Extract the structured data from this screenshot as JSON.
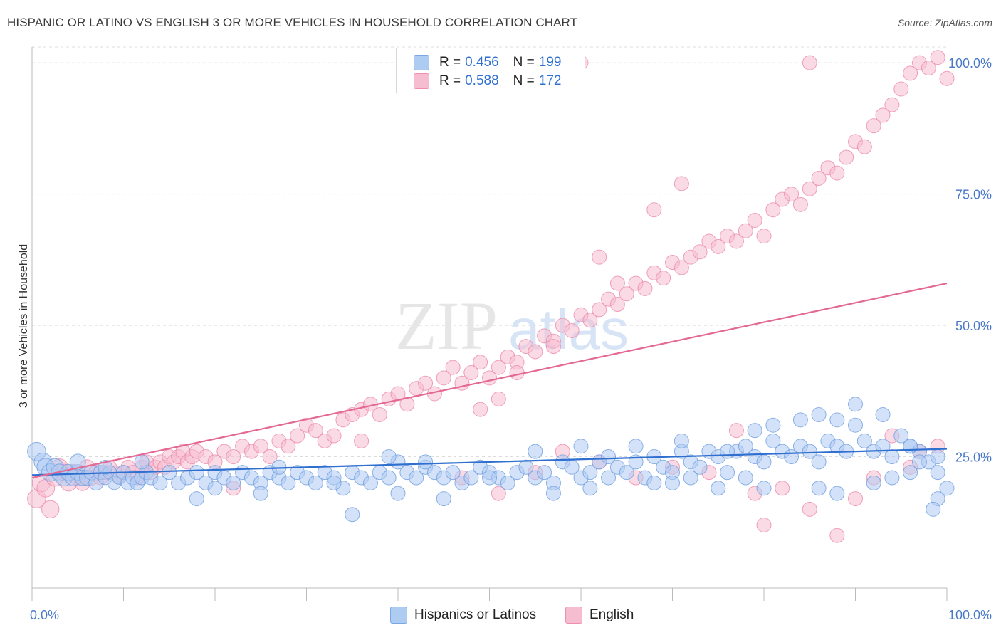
{
  "title": "HISPANIC OR LATINO VS ENGLISH 3 OR MORE VEHICLES IN HOUSEHOLD CORRELATION CHART",
  "source": "Source: ZipAtlas.com",
  "watermark": {
    "zip": "ZIP",
    "atlas": "atlas"
  },
  "stats": [
    {
      "r_label": "R =",
      "r_value": "0.456",
      "n_label": "N =",
      "n_value": "199",
      "color": "#aecbf2",
      "border": "#7aa6e6"
    },
    {
      "r_label": "R =",
      "r_value": "0.588",
      "n_label": "N =",
      "n_value": "172",
      "color": "#f6bcd0",
      "border": "#ee8fb0"
    }
  ],
  "legend": [
    {
      "label": "Hispanics or Latinos",
      "color": "#aecbf2",
      "border": "#7aa6e6"
    },
    {
      "label": "English",
      "color": "#f6bcd0",
      "border": "#ee8fb0"
    }
  ],
  "chart_data": {
    "type": "scatter",
    "title": "HISPANIC OR LATINO VS ENGLISH 3 OR MORE VEHICLES IN HOUSEHOLD CORRELATION CHART",
    "xlabel": "",
    "ylabel": "3 or more Vehicles in Household",
    "xlim": [
      0,
      100
    ],
    "ylim": [
      0,
      103
    ],
    "x_tick_labels": [
      "0.0%",
      "100.0%"
    ],
    "y_ticks": [
      25,
      50,
      75,
      100
    ],
    "y_tick_labels": [
      "25.0%",
      "50.0%",
      "75.0%",
      "100.0%"
    ],
    "grid": "dashed horizontal",
    "colors": {
      "blue_fill": "#aecbf2",
      "blue_stroke": "#6f9fe0",
      "blue_line": "#2f6fd0",
      "pink_fill": "#f6bcd0",
      "pink_stroke": "#ec8aab",
      "pink_line": "#e46894",
      "axis_text": "#4a78c8"
    },
    "series": [
      {
        "name": "Hispanics or Latinos",
        "trend": {
          "x": [
            0,
            100
          ],
          "y": [
            21.5,
            26.5
          ]
        },
        "points": [
          [
            0.5,
            26
          ],
          [
            1.2,
            24
          ],
          [
            1.5,
            23
          ],
          [
            2,
            22
          ],
          [
            2.5,
            23
          ],
          [
            3,
            22
          ],
          [
            3.5,
            21
          ],
          [
            4,
            22
          ],
          [
            4.5,
            21
          ],
          [
            5,
            22
          ],
          [
            5.5,
            21
          ],
          [
            6,
            21
          ],
          [
            6.5,
            22
          ],
          [
            7,
            20
          ],
          [
            7.5,
            22
          ],
          [
            8,
            21
          ],
          [
            8.5,
            22
          ],
          [
            9,
            20
          ],
          [
            9.5,
            21
          ],
          [
            10,
            22
          ],
          [
            10.5,
            20
          ],
          [
            11,
            21
          ],
          [
            11.5,
            20
          ],
          [
            12,
            21
          ],
          [
            12.5,
            22
          ],
          [
            13,
            21
          ],
          [
            14,
            20
          ],
          [
            15,
            22
          ],
          [
            16,
            20
          ],
          [
            17,
            21
          ],
          [
            18,
            22
          ],
          [
            19,
            20
          ],
          [
            20,
            22
          ],
          [
            21,
            21
          ],
          [
            22,
            20
          ],
          [
            23,
            22
          ],
          [
            24,
            21
          ],
          [
            25,
            20
          ],
          [
            26,
            22
          ],
          [
            27,
            21
          ],
          [
            28,
            20
          ],
          [
            29,
            22
          ],
          [
            30,
            21
          ],
          [
            31,
            20
          ],
          [
            32,
            22
          ],
          [
            33,
            21
          ],
          [
            34,
            19
          ],
          [
            35,
            22
          ],
          [
            36,
            21
          ],
          [
            37,
            20
          ],
          [
            38,
            22
          ],
          [
            39,
            21
          ],
          [
            40,
            24
          ],
          [
            41,
            22
          ],
          [
            42,
            21
          ],
          [
            43,
            23
          ],
          [
            44,
            22
          ],
          [
            45,
            21
          ],
          [
            46,
            22
          ],
          [
            47,
            20
          ],
          [
            48,
            21
          ],
          [
            49,
            23
          ],
          [
            50,
            22
          ],
          [
            51,
            21
          ],
          [
            52,
            20
          ],
          [
            53,
            22
          ],
          [
            54,
            23
          ],
          [
            55,
            21
          ],
          [
            56,
            22
          ],
          [
            57,
            20
          ],
          [
            58,
            24
          ],
          [
            59,
            23
          ],
          [
            60,
            21
          ],
          [
            61,
            22
          ],
          [
            62,
            24
          ],
          [
            63,
            21
          ],
          [
            64,
            23
          ],
          [
            65,
            22
          ],
          [
            66,
            24
          ],
          [
            67,
            21
          ],
          [
            68,
            25
          ],
          [
            69,
            23
          ],
          [
            70,
            22
          ],
          [
            71,
            26
          ],
          [
            72,
            24
          ],
          [
            73,
            23
          ],
          [
            74,
            26
          ],
          [
            75,
            25
          ],
          [
            76,
            22
          ],
          [
            77,
            26
          ],
          [
            78,
            27
          ],
          [
            79,
            25
          ],
          [
            80,
            24
          ],
          [
            81,
            28
          ],
          [
            82,
            26
          ],
          [
            83,
            25
          ],
          [
            84,
            27
          ],
          [
            85,
            26
          ],
          [
            86,
            24
          ],
          [
            87,
            28
          ],
          [
            88,
            27
          ],
          [
            89,
            26
          ],
          [
            90,
            31
          ],
          [
            91,
            28
          ],
          [
            92,
            26
          ],
          [
            93,
            27
          ],
          [
            94,
            25
          ],
          [
            95,
            29
          ],
          [
            96,
            27
          ],
          [
            97,
            26
          ],
          [
            98,
            24
          ],
          [
            99,
            25
          ],
          [
            100,
            19
          ],
          [
            18,
            17
          ],
          [
            25,
            18
          ],
          [
            35,
            14
          ],
          [
            40,
            18
          ],
          [
            45,
            17
          ],
          [
            57,
            18
          ],
          [
            61,
            19
          ],
          [
            68,
            20
          ],
          [
            70,
            20
          ],
          [
            72,
            21
          ],
          [
            75,
            19
          ],
          [
            78,
            21
          ],
          [
            80,
            19
          ],
          [
            86,
            19
          ],
          [
            88,
            18
          ],
          [
            92,
            20
          ],
          [
            94,
            21
          ],
          [
            96,
            22
          ],
          [
            99,
            17
          ],
          [
            98.5,
            15
          ],
          [
            5,
            24
          ],
          [
            8,
            23
          ],
          [
            12,
            24
          ],
          [
            20,
            19
          ],
          [
            27,
            23
          ],
          [
            33,
            20
          ],
          [
            39,
            25
          ],
          [
            43,
            24
          ],
          [
            50,
            21
          ],
          [
            55,
            26
          ],
          [
            60,
            27
          ],
          [
            63,
            25
          ],
          [
            66,
            27
          ],
          [
            71,
            28
          ],
          [
            76,
            26
          ],
          [
            79,
            30
          ],
          [
            81,
            31
          ],
          [
            84,
            32
          ],
          [
            86,
            33
          ],
          [
            88,
            32
          ],
          [
            90,
            35
          ],
          [
            93,
            33
          ],
          [
            96,
            27
          ],
          [
            97,
            24
          ],
          [
            99,
            22
          ]
        ]
      },
      {
        "name": "English",
        "trend": {
          "x": [
            0,
            100
          ],
          "y": [
            21,
            58
          ]
        },
        "points": [
          [
            0.5,
            17
          ],
          [
            1,
            20
          ],
          [
            1.5,
            19
          ],
          [
            2,
            15
          ],
          [
            2.5,
            21
          ],
          [
            3,
            23
          ],
          [
            3.5,
            22
          ],
          [
            4,
            20
          ],
          [
            4.5,
            22
          ],
          [
            5,
            21
          ],
          [
            5.5,
            20
          ],
          [
            6,
            23
          ],
          [
            6.5,
            21
          ],
          [
            7,
            22
          ],
          [
            7.5,
            21
          ],
          [
            8,
            22
          ],
          [
            8.5,
            23
          ],
          [
            9,
            22
          ],
          [
            9.5,
            21
          ],
          [
            10,
            22
          ],
          [
            10.5,
            23
          ],
          [
            11,
            22
          ],
          [
            11.5,
            21
          ],
          [
            12,
            23
          ],
          [
            12.5,
            24
          ],
          [
            13,
            22
          ],
          [
            13.5,
            23
          ],
          [
            14,
            24
          ],
          [
            14.5,
            23
          ],
          [
            15,
            25
          ],
          [
            15.5,
            24
          ],
          [
            16,
            25
          ],
          [
            16.5,
            26
          ],
          [
            17,
            24
          ],
          [
            17.5,
            25
          ],
          [
            18,
            26
          ],
          [
            19,
            25
          ],
          [
            20,
            24
          ],
          [
            21,
            26
          ],
          [
            22,
            25
          ],
          [
            23,
            27
          ],
          [
            24,
            26
          ],
          [
            25,
            27
          ],
          [
            26,
            25
          ],
          [
            27,
            28
          ],
          [
            28,
            27
          ],
          [
            29,
            29
          ],
          [
            30,
            31
          ],
          [
            31,
            30
          ],
          [
            32,
            28
          ],
          [
            33,
            29
          ],
          [
            34,
            32
          ],
          [
            35,
            33
          ],
          [
            36,
            34
          ],
          [
            37,
            35
          ],
          [
            38,
            33
          ],
          [
            39,
            36
          ],
          [
            40,
            37
          ],
          [
            41,
            35
          ],
          [
            42,
            38
          ],
          [
            43,
            39
          ],
          [
            44,
            37
          ],
          [
            45,
            40
          ],
          [
            46,
            42
          ],
          [
            47,
            39
          ],
          [
            48,
            41
          ],
          [
            49,
            43
          ],
          [
            50,
            40
          ],
          [
            51,
            42
          ],
          [
            52,
            44
          ],
          [
            53,
            43
          ],
          [
            54,
            46
          ],
          [
            55,
            45
          ],
          [
            56,
            48
          ],
          [
            57,
            47
          ],
          [
            58,
            50
          ],
          [
            59,
            49
          ],
          [
            60,
            52
          ],
          [
            61,
            51
          ],
          [
            62,
            53
          ],
          [
            63,
            55
          ],
          [
            64,
            54
          ],
          [
            65,
            56
          ],
          [
            66,
            58
          ],
          [
            67,
            57
          ],
          [
            68,
            60
          ],
          [
            69,
            59
          ],
          [
            70,
            62
          ],
          [
            71,
            61
          ],
          [
            72,
            63
          ],
          [
            73,
            64
          ],
          [
            74,
            66
          ],
          [
            75,
            65
          ],
          [
            76,
            67
          ],
          [
            77,
            66
          ],
          [
            78,
            68
          ],
          [
            79,
            70
          ],
          [
            80,
            67
          ],
          [
            81,
            72
          ],
          [
            82,
            74
          ],
          [
            83,
            75
          ],
          [
            84,
            73
          ],
          [
            85,
            76
          ],
          [
            86,
            78
          ],
          [
            87,
            80
          ],
          [
            88,
            79
          ],
          [
            89,
            82
          ],
          [
            90,
            85
          ],
          [
            91,
            84
          ],
          [
            92,
            88
          ],
          [
            93,
            90
          ],
          [
            94,
            92
          ],
          [
            95,
            95
          ],
          [
            96,
            98
          ],
          [
            97,
            100
          ],
          [
            98,
            99
          ],
          [
            99,
            101
          ],
          [
            100,
            97
          ],
          [
            22,
            19
          ],
          [
            36,
            28
          ],
          [
            47,
            21
          ],
          [
            51,
            18
          ],
          [
            55,
            22
          ],
          [
            58,
            26
          ],
          [
            62,
            24
          ],
          [
            66,
            21
          ],
          [
            70,
            23
          ],
          [
            74,
            22
          ],
          [
            77,
            30
          ],
          [
            79,
            18
          ],
          [
            80,
            12
          ],
          [
            82,
            19
          ],
          [
            85,
            15
          ],
          [
            88,
            10
          ],
          [
            90,
            17
          ],
          [
            92,
            21
          ],
          [
            94,
            29
          ],
          [
            96,
            23
          ],
          [
            97,
            26
          ],
          [
            99,
            27
          ],
          [
            60,
            100
          ],
          [
            85,
            100
          ],
          [
            71,
            77
          ],
          [
            68,
            72
          ],
          [
            62,
            63
          ],
          [
            64,
            58
          ],
          [
            57,
            46
          ],
          [
            53,
            41
          ],
          [
            51,
            36
          ],
          [
            49,
            34
          ]
        ]
      }
    ]
  }
}
